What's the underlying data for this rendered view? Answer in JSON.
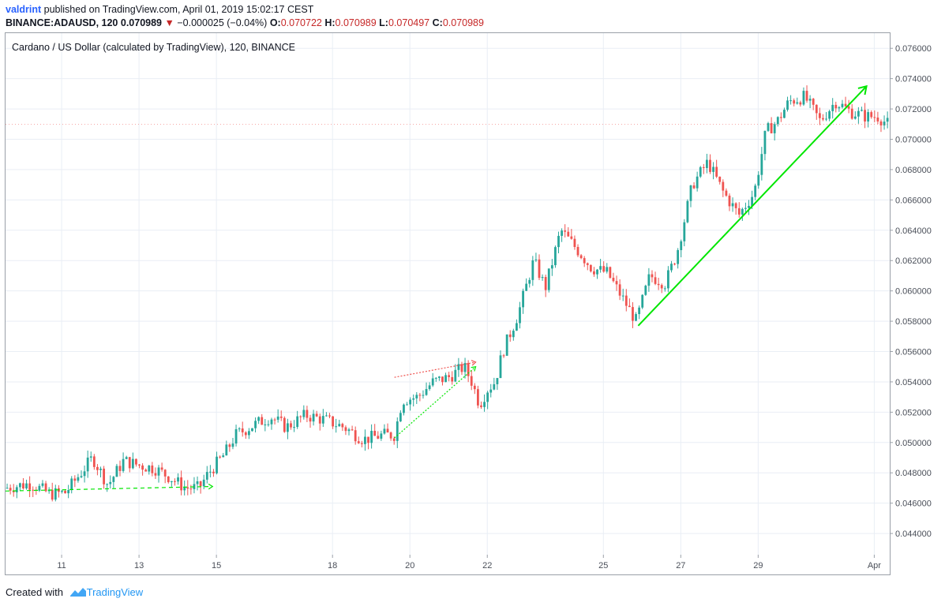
{
  "header": {
    "author": "valdrint",
    "published": "published on TradingView.com, April 01, 2019 15:02:17 CEST",
    "symbol": "BINANCE:ADAUSD, 120",
    "last": "0.070989",
    "arrow": "▼",
    "change": "−0.000025 (−0.04%)",
    "o_label": "O:",
    "o_value": "0.070722",
    "h_label": "H:",
    "h_value": "0.070989",
    "l_label": "L:",
    "l_value": "0.070497",
    "c_label": "C:",
    "c_value": "0.070989"
  },
  "footer": {
    "created_with": "Created with",
    "brand": "TradingView"
  },
  "colors": {
    "up": "#26a69a",
    "down": "#ef5350",
    "grid": "#e9eef5",
    "trend_green": "#00e600",
    "trend_red": "#ef5350"
  },
  "chart_data": {
    "type": "candlestick",
    "title": "Cardano / US Dollar (calculated by TradingView), 120, BINANCE",
    "ylim": [
      0.0426,
      0.077
    ],
    "y_ticks": [
      "0.044000",
      "0.046000",
      "0.048000",
      "0.050000",
      "0.052000",
      "0.054000",
      "0.056000",
      "0.058000",
      "0.060000",
      "0.062000",
      "0.064000",
      "0.066000",
      "0.068000",
      "0.070000",
      "0.072000",
      "0.074000",
      "0.076000"
    ],
    "x_ticks": [
      {
        "label": "11",
        "day": 11
      },
      {
        "label": "13",
        "day": 13
      },
      {
        "label": "15",
        "day": 15
      },
      {
        "label": "18",
        "day": 18
      },
      {
        "label": "20",
        "day": 20
      },
      {
        "label": "22",
        "day": 22
      },
      {
        "label": "25",
        "day": 25
      },
      {
        "label": "27",
        "day": 27
      },
      {
        "label": "29",
        "day": 29
      },
      {
        "label": "Apr",
        "day": 32
      }
    ],
    "x_range_days": [
      9.55,
      32.4
    ],
    "price_path": [
      [
        9.55,
        0.047
      ],
      [
        10.2,
        0.0473
      ],
      [
        10.7,
        0.0466
      ],
      [
        11.1,
        0.0467
      ],
      [
        11.5,
        0.048
      ],
      [
        11.8,
        0.049
      ],
      [
        12.2,
        0.0472
      ],
      [
        12.6,
        0.0488
      ],
      [
        13.0,
        0.0485
      ],
      [
        13.4,
        0.0483
      ],
      [
        13.8,
        0.0477
      ],
      [
        14.2,
        0.047
      ],
      [
        14.55,
        0.047
      ],
      [
        14.8,
        0.048
      ],
      [
        15.2,
        0.0492
      ],
      [
        15.5,
        0.0505
      ],
      [
        16.0,
        0.0512
      ],
      [
        16.4,
        0.0517
      ],
      [
        16.8,
        0.051
      ],
      [
        17.3,
        0.0518
      ],
      [
        17.8,
        0.0515
      ],
      [
        18.3,
        0.051
      ],
      [
        18.8,
        0.0502
      ],
      [
        19.3,
        0.0505
      ],
      [
        19.6,
        0.0505
      ],
      [
        19.8,
        0.0528
      ],
      [
        20.2,
        0.053
      ],
      [
        20.6,
        0.054
      ],
      [
        21.0,
        0.0543
      ],
      [
        21.4,
        0.055
      ],
      [
        21.6,
        0.054
      ],
      [
        21.8,
        0.0525
      ],
      [
        22.0,
        0.0535
      ],
      [
        22.2,
        0.054
      ],
      [
        22.4,
        0.056
      ],
      [
        22.8,
        0.0585
      ],
      [
        23.2,
        0.062
      ],
      [
        23.5,
        0.0602
      ],
      [
        23.9,
        0.064
      ],
      [
        24.3,
        0.0628
      ],
      [
        24.7,
        0.0615
      ],
      [
        25.1,
        0.0612
      ],
      [
        25.5,
        0.0595
      ],
      [
        25.85,
        0.058
      ],
      [
        26.2,
        0.061
      ],
      [
        26.6,
        0.0605
      ],
      [
        26.9,
        0.0625
      ],
      [
        27.3,
        0.067
      ],
      [
        27.7,
        0.0685
      ],
      [
        28.1,
        0.0665
      ],
      [
        28.5,
        0.065
      ],
      [
        28.9,
        0.0665
      ],
      [
        29.2,
        0.0705
      ],
      [
        29.5,
        0.0712
      ],
      [
        29.8,
        0.0725
      ],
      [
        30.2,
        0.0728
      ],
      [
        30.6,
        0.0712
      ],
      [
        31.0,
        0.0725
      ],
      [
        31.4,
        0.0718
      ],
      [
        31.8,
        0.0715
      ],
      [
        32.1,
        0.0715
      ],
      [
        32.35,
        0.071
      ]
    ],
    "last_price": 0.070989,
    "trendlines": [
      {
        "style": "dashed",
        "color": "green",
        "from": [
          9.55,
          0.0468
        ],
        "to": [
          14.9,
          0.0471
        ]
      },
      {
        "style": "dotted",
        "color": "green",
        "from": [
          19.6,
          0.0503
        ],
        "to": [
          21.7,
          0.055
        ]
      },
      {
        "style": "dotted",
        "color": "red",
        "from": [
          19.6,
          0.0543
        ],
        "to": [
          21.7,
          0.0553
        ]
      },
      {
        "style": "solid",
        "color": "green",
        "from": [
          25.9,
          0.0577
        ],
        "to": [
          31.8,
          0.0735
        ]
      }
    ]
  }
}
